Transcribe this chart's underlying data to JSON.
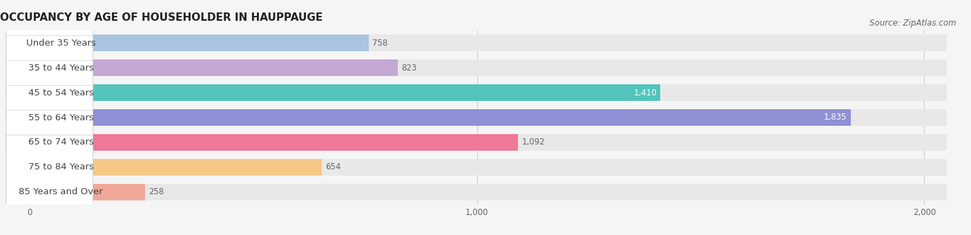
{
  "title": "OCCUPANCY BY AGE OF HOUSEHOLDER IN HAUPPAUGE",
  "source": "Source: ZipAtlas.com",
  "categories": [
    "Under 35 Years",
    "35 to 44 Years",
    "45 to 54 Years",
    "55 to 64 Years",
    "65 to 74 Years",
    "75 to 84 Years",
    "85 Years and Over"
  ],
  "values": [
    758,
    823,
    1410,
    1835,
    1092,
    654,
    258
  ],
  "bar_colors": [
    "#a8c4e0",
    "#c4a8d4",
    "#52c4bc",
    "#9090d4",
    "#f07898",
    "#f5c888",
    "#f0a898"
  ],
  "value_colors": [
    "#666666",
    "#666666",
    "#ffffff",
    "#ffffff",
    "#666666",
    "#666666",
    "#666666"
  ],
  "xlim_min": -55,
  "xlim_max": 2050,
  "xticks": [
    0,
    1000,
    2000
  ],
  "xtick_labels": [
    "0",
    "1,000",
    "2,000"
  ],
  "background_color": "#f5f5f5",
  "bar_bg_color": "#e8e8e8",
  "title_fontsize": 11,
  "source_fontsize": 8.5,
  "label_fontsize": 9.5,
  "value_fontsize": 8.5,
  "bar_height": 0.68,
  "bar_gap": 0.32
}
